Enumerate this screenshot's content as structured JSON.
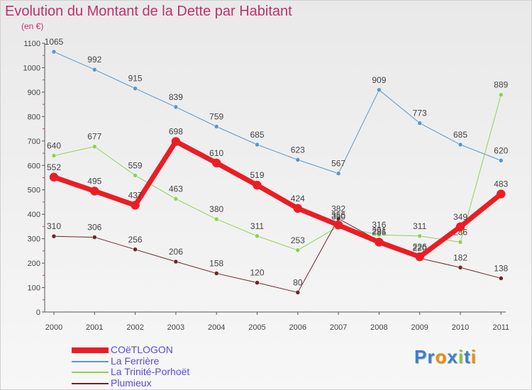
{
  "title": "Evolution du Montant de la Dette par Habitant",
  "subtitle": "(en €)",
  "logo": {
    "text": "Proxiti",
    "letters": [
      "P",
      "r",
      "o",
      "x",
      "i",
      "t",
      "i"
    ],
    "colors": [
      "#3a7fd0",
      "#3a7fd0",
      "#f28c00",
      "#3a7fd0",
      "#8bc53f",
      "#3a7fd0",
      "#f28c00"
    ]
  },
  "chart_data": {
    "type": "line",
    "title": "Evolution du Montant de la Dette par Habitant",
    "subtitle": "(en €)",
    "xlabel": "",
    "ylabel": "",
    "categories": [
      "2000",
      "2001",
      "2002",
      "2003",
      "2004",
      "2005",
      "2006",
      "2007",
      "2008",
      "2009",
      "2010",
      "2011"
    ],
    "ylim": [
      0,
      1100
    ],
    "yticks": [
      0,
      100,
      200,
      300,
      400,
      500,
      600,
      700,
      800,
      900,
      1000,
      1100
    ],
    "grid": false,
    "legend": "bottom-left",
    "series": [
      {
        "name": "La Ferrière",
        "color": "#5c97c8",
        "width": 1,
        "values": [
          1065,
          992,
          915,
          839,
          759,
          685,
          623,
          567,
          909,
          773,
          685,
          620
        ]
      },
      {
        "name": "La Trinité-Porhoët",
        "color": "#8fd155",
        "width": 1,
        "values": [
          640,
          677,
          559,
          463,
          380,
          311,
          253,
          350,
          316,
          311,
          286,
          889
        ]
      },
      {
        "name": "Plumieux",
        "color": "#6b2626",
        "width": 1,
        "values": [
          310,
          306,
          256,
          206,
          158,
          120,
          80,
          382,
          291,
          220,
          182,
          138
        ]
      },
      {
        "name": "COëTLOGON",
        "color": "#ec1c24",
        "width": 7,
        "values": [
          552,
          495,
          437,
          698,
          610,
          519,
          424,
          356,
          286,
          226,
          349,
          483
        ]
      }
    ],
    "legend_order": [
      "COëTLOGON",
      "La Ferrière",
      "La Trinité-Porhoët",
      "Plumieux"
    ]
  }
}
